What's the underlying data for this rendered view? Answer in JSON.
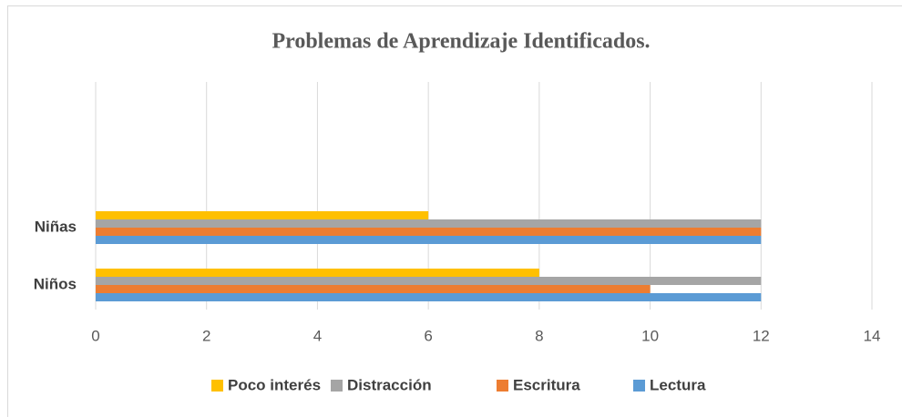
{
  "chart_data": {
    "type": "bar",
    "orientation": "horizontal",
    "title": "Problemas de Aprendizaje Identificados.",
    "categories": [
      "Niños",
      "Niñas"
    ],
    "series": [
      {
        "name": "Lectura",
        "color": "#5b9bd5",
        "values": [
          12,
          12
        ]
      },
      {
        "name": "Escritura",
        "color": "#ed7d31",
        "values": [
          10,
          12
        ]
      },
      {
        "name": "Distracción",
        "color": "#a5a5a5",
        "values": [
          12,
          12
        ]
      },
      {
        "name": "Poco interés",
        "color": "#ffc000",
        "values": [
          8,
          6
        ]
      }
    ],
    "xlim": [
      0,
      14
    ],
    "xticks": [
      0,
      2,
      4,
      6,
      8,
      10,
      12,
      14
    ],
    "grid": true,
    "legend": "bottom"
  }
}
